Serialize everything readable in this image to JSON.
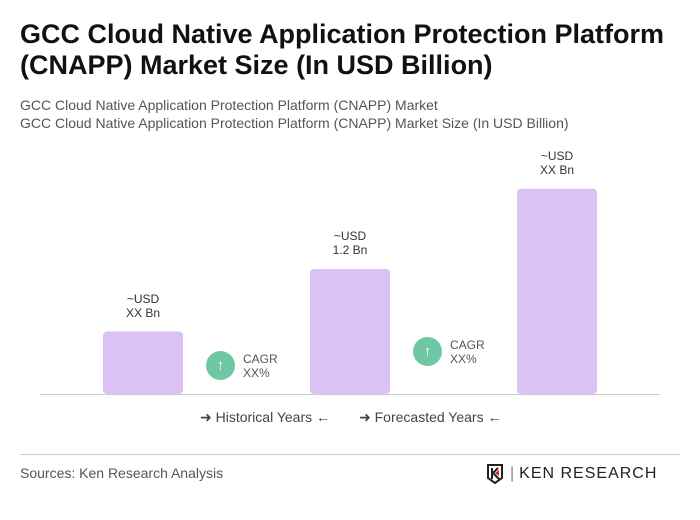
{
  "title": "GCC Cloud Native Application Protection Platform (CNAPP) Market Size (In USD Billion)",
  "subtitle1": "GCC Cloud Native Application Protection Platform (CNAPP) Market",
  "subtitle2": "GCC Cloud Native Application Protection Platform (CNAPP) Market Size (In USD Billion)",
  "chart_data": {
    "type": "bar",
    "categories": [
      "",
      "",
      ""
    ],
    "values": [
      0.6,
      1.2,
      1.97
    ],
    "data_labels": [
      [
        "~USD",
        "XX Bn"
      ],
      [
        "~USD",
        "1.2 Bn"
      ],
      [
        "~USD",
        "XX Bn"
      ]
    ],
    "bar_color": "#dcc1f5",
    "cagr": [
      {
        "label": "CAGR",
        "value": "XX%"
      },
      {
        "label": "CAGR",
        "value": "XX%"
      }
    ],
    "cagr_color": "#6fc8a4",
    "legend": [
      "Historical Years",
      "Forecasted Years"
    ],
    "grid": false
  },
  "footer": {
    "sources": "Sources: Ken Research Analysis",
    "logo": "KEN RESEARCH"
  }
}
